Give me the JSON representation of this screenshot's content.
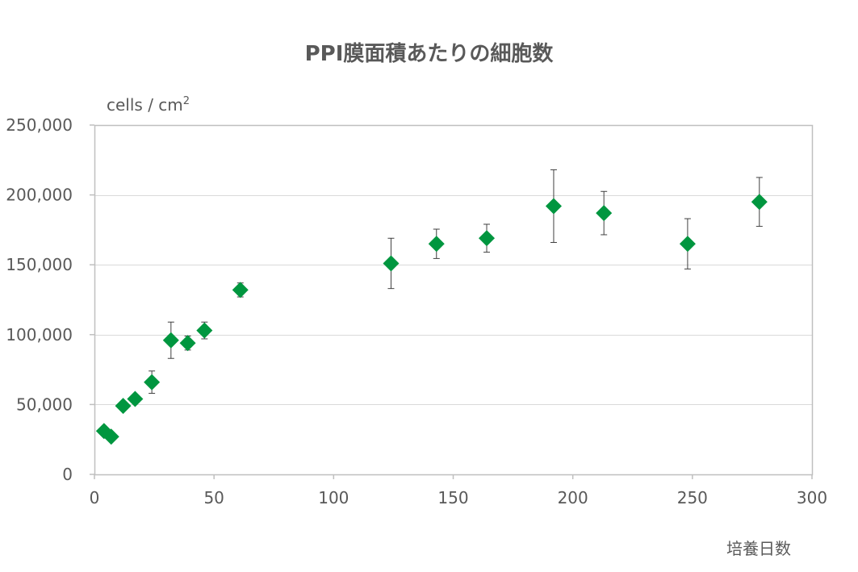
{
  "chart_data": {
    "type": "scatter",
    "title": "PPI膜面積あたりの細胞数",
    "ylabel_main": "cells / cm",
    "ylabel_sup": "2",
    "xlabel": "培養日数",
    "xlim": [
      0,
      300
    ],
    "ylim": [
      0,
      250000
    ],
    "xticks": [
      0,
      50,
      100,
      150,
      200,
      250,
      300
    ],
    "xtick_labels": [
      "0",
      "50",
      "100",
      "150",
      "200",
      "250",
      "300"
    ],
    "yticks": [
      0,
      50000,
      100000,
      150000,
      200000,
      250000
    ],
    "ytick_labels": [
      "0",
      "50,000",
      "100,000",
      "150,000",
      "200,000",
      "250,000"
    ],
    "grid": "horizontal",
    "marker": "diamond",
    "color": "#00963f",
    "errorbar_color": "#404040",
    "points": [
      {
        "x": 4,
        "y": 31000,
        "err": null
      },
      {
        "x": 7,
        "y": 27000,
        "err": null
      },
      {
        "x": 12,
        "y": 49000,
        "err": null
      },
      {
        "x": 17,
        "y": 54000,
        "err": null
      },
      {
        "x": 24,
        "y": 66000,
        "err": 8000
      },
      {
        "x": 32,
        "y": 96000,
        "err": 13000
      },
      {
        "x": 39,
        "y": 94000,
        "err": 5000
      },
      {
        "x": 46,
        "y": 103000,
        "err": 6000
      },
      {
        "x": 61,
        "y": 132000,
        "err": 5000
      },
      {
        "x": 124,
        "y": 151000,
        "err": 18000
      },
      {
        "x": 143,
        "y": 165000,
        "err": 10500
      },
      {
        "x": 164,
        "y": 169000,
        "err": 10000
      },
      {
        "x": 192,
        "y": 192000,
        "err": 26000
      },
      {
        "x": 213,
        "y": 187000,
        "err": 15500
      },
      {
        "x": 248,
        "y": 165000,
        "err": 18000
      },
      {
        "x": 278,
        "y": 195000,
        "err": 17500
      }
    ]
  }
}
